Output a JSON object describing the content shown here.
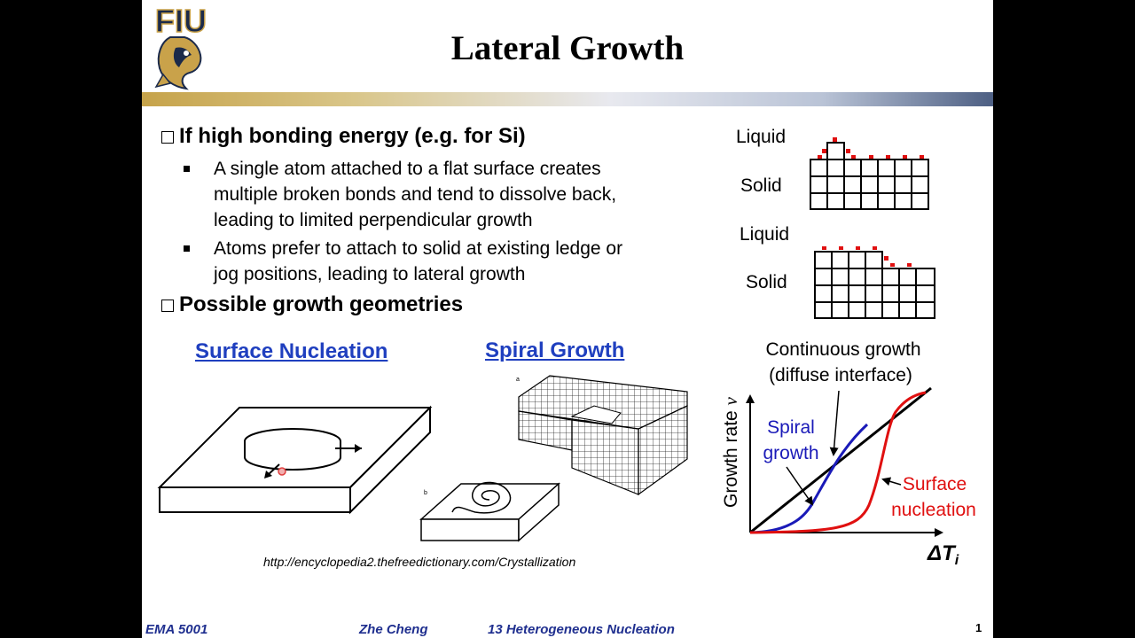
{
  "slide": {
    "title": "Lateral Growth",
    "logo_text": "FIU",
    "section1": "If high bonding energy (e.g. for Si)",
    "bullets": [
      [
        "A single atom attached to a flat surface creates",
        "multiple broken bonds and tend to dissolve back,",
        "leading to limited perpendicular growth"
      ],
      [
        "Atoms prefer to attach to solid at existing ledge or",
        "jog positions, leading to lateral growth"
      ]
    ],
    "section2": "Possible growth geometries",
    "surface_nucleation_link": "Surface Nucleation",
    "spiral_growth_link": "Spiral Growth",
    "spiral_fig_label_a": "a",
    "spiral_fig_label_b": "b",
    "source_url": "http://encyclopedia2.thefreedictionary.com/Crystallization",
    "diagram_top": {
      "liquid": "Liquid",
      "solid": "Solid"
    },
    "diagram_bottom": {
      "liquid": "Liquid",
      "solid": "Solid"
    },
    "graph": {
      "continuous_1": "Continuous growth",
      "continuous_2": "(diffuse interface)",
      "spiral_1": "Spiral",
      "spiral_2": "growth",
      "surface_1": "Surface",
      "surface_2": "nucleation",
      "ylabel": "Growth rate",
      "ylabel_var": "v",
      "xlabel": "ΔT",
      "xlabel_sub": "i"
    },
    "footer": {
      "course": "EMA 5001",
      "author": "Zhe Cheng",
      "lecture": "13  Heterogeneous Nucleation",
      "page": "1"
    },
    "colors": {
      "spiral": "#1a1ab8",
      "surface": "#e01010",
      "link": "#1f3fbf",
      "footer": "#1f2f8f"
    }
  }
}
